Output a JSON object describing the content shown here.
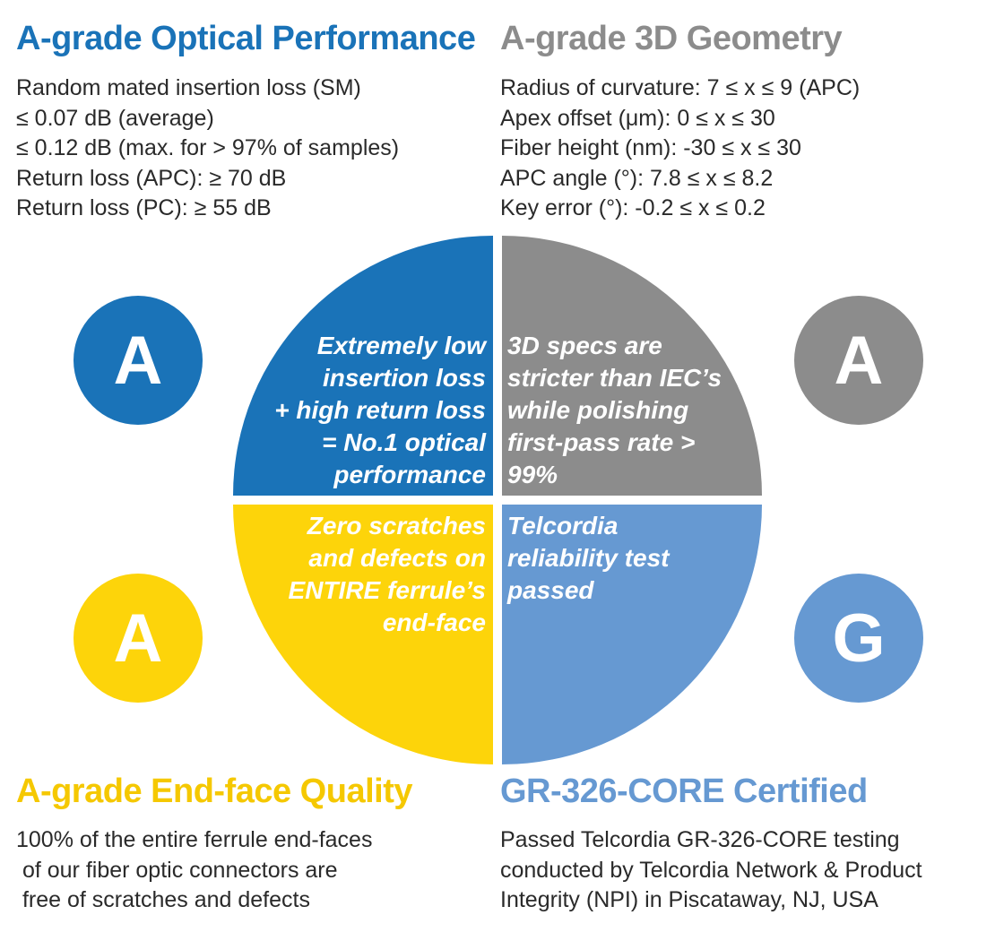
{
  "colors": {
    "blue": "#1a73b8",
    "gray": "#8c8c8c",
    "yellow": "#fdd40a",
    "light_blue": "#6699d2",
    "heading_blue": "#1a73b8",
    "heading_gray": "#8c8c8c",
    "heading_yellow": "#f5c800",
    "heading_light_blue": "#6699d2"
  },
  "optical": {
    "title": "A-grade Optical Performance",
    "specs": [
      "Random mated insertion loss (SM)",
      "≤ 0.07 dB (average)",
      "≤ 0.12 dB (max. for > 97% of samples)",
      "Return loss (APC): ≥ 70 dB",
      "Return loss (PC): ≥ 55 dB"
    ],
    "badge": "A",
    "quadrant_text": "Extremely low\ninsertion loss\n+ high return loss\n= No.1 optical\nperformance"
  },
  "geometry": {
    "title": "A-grade 3D Geometry",
    "specs": [
      "Radius of curvature: 7 ≤ x ≤ 9 (APC)",
      "Apex offset (μm): 0 ≤ x ≤ 30",
      "Fiber height (nm): -30 ≤ x ≤ 30",
      "APC angle (°): 7.8 ≤ x ≤ 8.2",
      "Key error (°): -0.2 ≤ x ≤ 0.2"
    ],
    "badge": "A",
    "quadrant_text": "3D specs are\nstricter than IEC’s\nwhile polishing\nfirst-pass rate >\n99%"
  },
  "endface": {
    "title": "A-grade End-face Quality",
    "description": "100% of the entire ferrule end-faces\n of our fiber optic connectors are\n free of scratches and defects",
    "badge": "A",
    "quadrant_text": "Zero scratches\nand defects on\nENTIRE ferrule’s\nend-face"
  },
  "certified": {
    "title": "GR-326-CORE Certified",
    "description": "Passed Telcordia GR-326-CORE testing\nconducted by Telcordia Network & Product\nIntegrity (NPI) in Piscataway, NJ, USA",
    "badge": "G",
    "quadrant_text": "Telcordia\nreliability test\npassed"
  }
}
